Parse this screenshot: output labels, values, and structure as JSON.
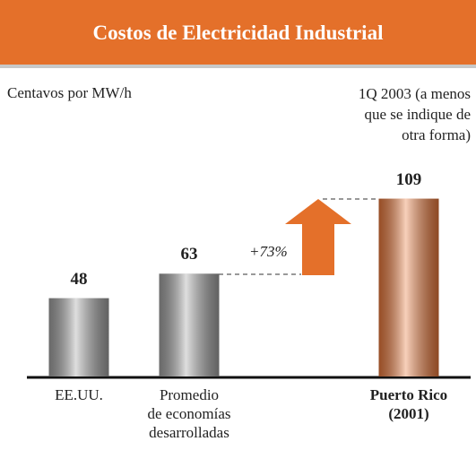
{
  "chart_data": {
    "type": "bar",
    "title": "Costos de Electricidad Industrial",
    "subtitle": "Centavos por MW/h",
    "note": "1Q 2003 (a menos\nque se indique de\notra forma)",
    "categories": [
      "EE.UU.",
      "Promedio\nde economías\ndesarrolladas",
      "Puerto Rico\n(2001)"
    ],
    "values": [
      48,
      63,
      109
    ],
    "colors": [
      "#a3a3a3",
      "#a3a3a3",
      "#ec7a3c"
    ],
    "bold": [
      false,
      false,
      true
    ],
    "annotation": "+73%",
    "header_color": "#e4702a"
  }
}
